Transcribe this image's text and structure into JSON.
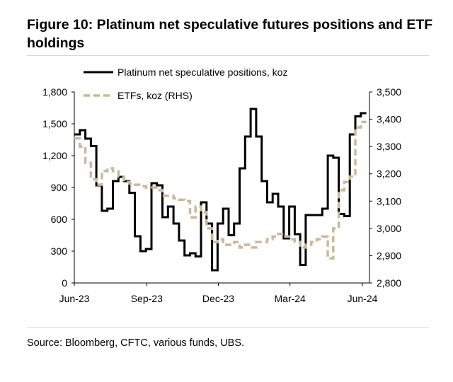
{
  "title": "Figure 10: Platinum net speculative futures positions and ETF holdings",
  "source": "Source: Bloomberg, CFTC, various funds, UBS.",
  "colors": {
    "spec_line": "#000000",
    "etf_line": "#c9b99d",
    "axis": "#000000"
  },
  "chart_data": {
    "type": "line",
    "x_type": "date",
    "x_range": [
      "2023-06-01",
      "2024-06-10"
    ],
    "x_ticks": [
      {
        "date": "2023-06-01",
        "label": "Jun-23"
      },
      {
        "date": "2023-09-01",
        "label": "Sep-23"
      },
      {
        "date": "2023-12-01",
        "label": "Dec-23"
      },
      {
        "date": "2024-03-01",
        "label": "Mar-24"
      },
      {
        "date": "2024-06-01",
        "label": "Jun-24"
      }
    ],
    "y_left": {
      "min": 0,
      "max": 1800,
      "ticks": [
        "0",
        "300",
        "600",
        "900",
        "1,200",
        "1,500",
        "1,800"
      ]
    },
    "y_right": {
      "min": 2800,
      "max": 3500,
      "ticks": [
        "2,800",
        "2,900",
        "3,000",
        "3,100",
        "3,200",
        "3,300",
        "3,400",
        "3,500"
      ]
    },
    "legend": {
      "placement": "top"
    },
    "grid": false,
    "series": [
      {
        "name": "Platinum net speculative positions, koz",
        "axis": "left",
        "style": "solid",
        "points": [
          [
            "2023-06-01",
            1400
          ],
          [
            "2023-06-08",
            1440
          ],
          [
            "2023-06-15",
            1360
          ],
          [
            "2023-06-22",
            1290
          ],
          [
            "2023-06-29",
            920
          ],
          [
            "2023-07-06",
            680
          ],
          [
            "2023-07-13",
            700
          ],
          [
            "2023-07-20",
            960
          ],
          [
            "2023-07-27",
            1000
          ],
          [
            "2023-08-03",
            960
          ],
          [
            "2023-08-10",
            850
          ],
          [
            "2023-08-17",
            440
          ],
          [
            "2023-08-24",
            300
          ],
          [
            "2023-08-31",
            320
          ],
          [
            "2023-09-07",
            940
          ],
          [
            "2023-09-14",
            920
          ],
          [
            "2023-09-21",
            620
          ],
          [
            "2023-09-28",
            720
          ],
          [
            "2023-10-05",
            560
          ],
          [
            "2023-10-12",
            400
          ],
          [
            "2023-10-19",
            260
          ],
          [
            "2023-10-26",
            280
          ],
          [
            "2023-11-02",
            250
          ],
          [
            "2023-11-09",
            760
          ],
          [
            "2023-11-16",
            560
          ],
          [
            "2023-11-23",
            120
          ],
          [
            "2023-11-30",
            560
          ],
          [
            "2023-12-07",
            700
          ],
          [
            "2023-12-14",
            450
          ],
          [
            "2023-12-21",
            560
          ],
          [
            "2023-12-28",
            1080
          ],
          [
            "2024-01-04",
            1380
          ],
          [
            "2024-01-11",
            1640
          ],
          [
            "2024-01-18",
            1380
          ],
          [
            "2024-01-25",
            960
          ],
          [
            "2024-02-01",
            760
          ],
          [
            "2024-02-08",
            840
          ],
          [
            "2024-02-15",
            720
          ],
          [
            "2024-02-22",
            420
          ],
          [
            "2024-02-29",
            720
          ],
          [
            "2024-03-07",
            460
          ],
          [
            "2024-03-14",
            170
          ],
          [
            "2024-03-21",
            640
          ],
          [
            "2024-03-28",
            640
          ],
          [
            "2024-04-04",
            640
          ],
          [
            "2024-04-11",
            700
          ],
          [
            "2024-04-18",
            1200
          ],
          [
            "2024-04-25",
            1180
          ],
          [
            "2024-05-02",
            650
          ],
          [
            "2024-05-09",
            630
          ],
          [
            "2024-05-16",
            1400
          ],
          [
            "2024-05-23",
            1570
          ],
          [
            "2024-05-30",
            1600
          ]
        ]
      },
      {
        "name": "ETFs, koz (RHS)",
        "axis": "right",
        "style": "dashed",
        "points": [
          [
            "2023-06-01",
            3330
          ],
          [
            "2023-06-08",
            3300
          ],
          [
            "2023-06-15",
            3240
          ],
          [
            "2023-06-22",
            3180
          ],
          [
            "2023-06-29",
            3160
          ],
          [
            "2023-07-06",
            3210
          ],
          [
            "2023-07-13",
            3220
          ],
          [
            "2023-07-20",
            3210
          ],
          [
            "2023-07-27",
            3190
          ],
          [
            "2023-08-03",
            3170
          ],
          [
            "2023-08-10",
            3165
          ],
          [
            "2023-08-17",
            3160
          ],
          [
            "2023-08-24",
            3155
          ],
          [
            "2023-08-31",
            3150
          ],
          [
            "2023-09-07",
            3150
          ],
          [
            "2023-09-14",
            3140
          ],
          [
            "2023-09-21",
            3120
          ],
          [
            "2023-09-28",
            3120
          ],
          [
            "2023-10-05",
            3110
          ],
          [
            "2023-10-12",
            3105
          ],
          [
            "2023-10-19",
            3100
          ],
          [
            "2023-10-26",
            3040
          ],
          [
            "2023-11-02",
            3080
          ],
          [
            "2023-11-09",
            3060
          ],
          [
            "2023-11-16",
            3000
          ],
          [
            "2023-11-23",
            2950
          ],
          [
            "2023-11-30",
            2960
          ],
          [
            "2023-12-07",
            2940
          ],
          [
            "2023-12-14",
            2940
          ],
          [
            "2023-12-21",
            2950
          ],
          [
            "2023-12-28",
            2930
          ],
          [
            "2024-01-04",
            2940
          ],
          [
            "2024-01-11",
            2930
          ],
          [
            "2024-01-18",
            2950
          ],
          [
            "2024-01-25",
            2950
          ],
          [
            "2024-02-01",
            2960
          ],
          [
            "2024-02-08",
            2970
          ],
          [
            "2024-02-15",
            2980
          ],
          [
            "2024-02-22",
            2970
          ],
          [
            "2024-02-29",
            2960
          ],
          [
            "2024-03-07",
            2950
          ],
          [
            "2024-03-14",
            2930
          ],
          [
            "2024-03-21",
            2940
          ],
          [
            "2024-03-28",
            2950
          ],
          [
            "2024-04-04",
            2960
          ],
          [
            "2024-04-11",
            2970
          ],
          [
            "2024-04-18",
            2890
          ],
          [
            "2024-04-25",
            3000
          ],
          [
            "2024-05-02",
            3140
          ],
          [
            "2024-05-09",
            3170
          ],
          [
            "2024-05-16",
            3190
          ],
          [
            "2024-05-23",
            3370
          ],
          [
            "2024-05-30",
            3390
          ]
        ]
      }
    ]
  }
}
